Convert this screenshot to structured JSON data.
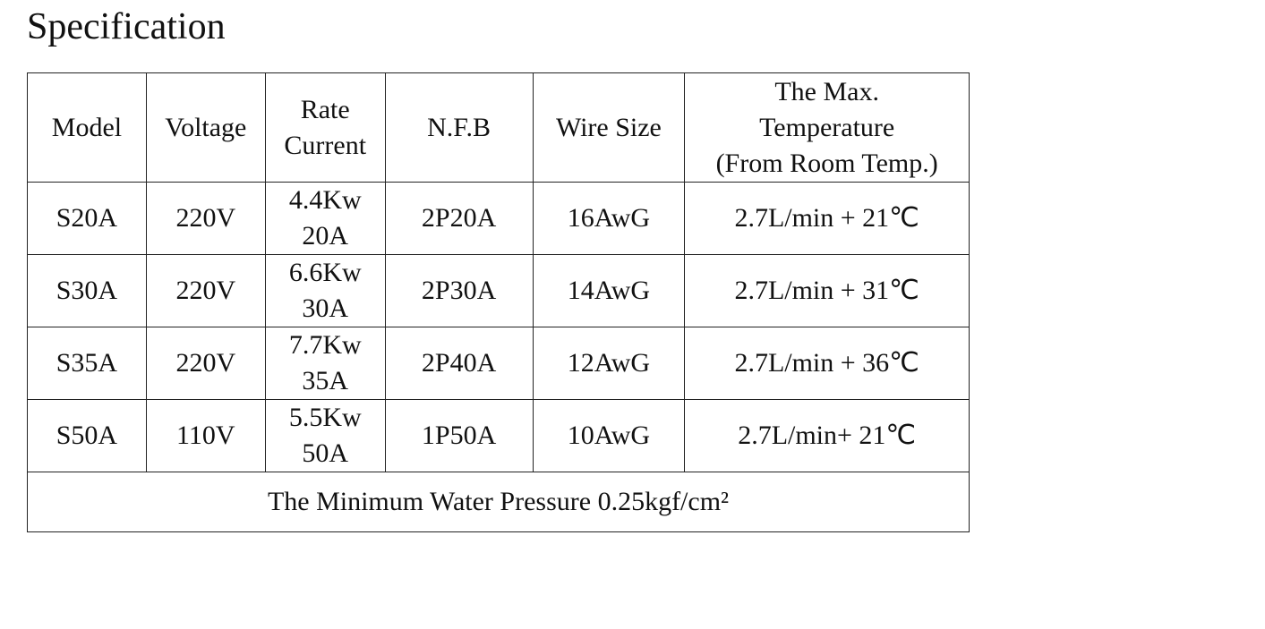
{
  "title": "Specification",
  "table": {
    "header": [
      "Model",
      "Voltage",
      [
        "Rate",
        "Current"
      ],
      "N.F.B",
      "Wire Size",
      [
        "The Max.",
        "Temperature",
        "(From Room Temp.)"
      ]
    ],
    "rows": [
      [
        "S20A",
        "220V",
        [
          "4.4Kw",
          "20A"
        ],
        "2P20A",
        "16AwG",
        "2.7L/min + 21℃"
      ],
      [
        "S30A",
        "220V",
        [
          "6.6Kw",
          "30A"
        ],
        "2P30A",
        "14AwG",
        "2.7L/min + 31℃"
      ],
      [
        "S35A",
        "220V",
        [
          "7.7Kw",
          "35A"
        ],
        "2P40A",
        "12AwG",
        "2.7L/min + 36℃"
      ],
      [
        "S50A",
        "110V",
        [
          "5.5Kw",
          "50A"
        ],
        "1P50A",
        "10AwG",
        "2.7L/min+ 21℃"
      ]
    ],
    "footer": "The Minimum Water Pressure 0.25kgf/cm²"
  }
}
